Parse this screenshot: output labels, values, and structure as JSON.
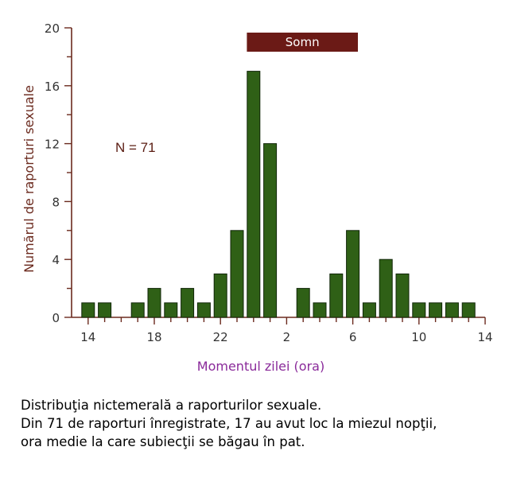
{
  "colors": {
    "axis": "#6b2a1e",
    "bar_fill": "#2f6016",
    "bar_stroke": "#102508",
    "band_fill": "#6b1a16",
    "band_text": "#ffffff",
    "xlabel": "#8a2a9a",
    "annotation": "#5a1c12"
  },
  "chart_data": {
    "type": "bar",
    "ylabel": "Numărul de raporturi sexuale",
    "xlabel": "Momentul zilei (ora)",
    "ylim": [
      0,
      20
    ],
    "y_ticks": [
      0,
      4,
      8,
      12,
      16,
      20
    ],
    "x_ticks": [
      "14",
      "18",
      "22",
      "2",
      "6",
      "10",
      "14"
    ],
    "categories": [
      "14",
      "15",
      "16",
      "17",
      "18",
      "19",
      "20",
      "21",
      "22",
      "23",
      "0",
      "1",
      "2",
      "3",
      "4",
      "5",
      "6",
      "7",
      "8",
      "9",
      "10",
      "11",
      "12",
      "13"
    ],
    "values": [
      1,
      1,
      0,
      1,
      2,
      1,
      2,
      1,
      3,
      6,
      17,
      12,
      0,
      2,
      1,
      3,
      6,
      1,
      4,
      3,
      1,
      1,
      1,
      1
    ],
    "annotation": "N = 71",
    "band": {
      "label": "Somn",
      "from": "0",
      "to": "6"
    },
    "grid": false,
    "legend": "none"
  },
  "caption": {
    "line1": "Distribuţia nictemerală a raporturilor sexuale.",
    "line2": "Din 71 de raporturi înregistrate, 17 au avut loc la miezul nopţii,",
    "line3": "ora medie la care subiecţii se băgau în pat."
  }
}
